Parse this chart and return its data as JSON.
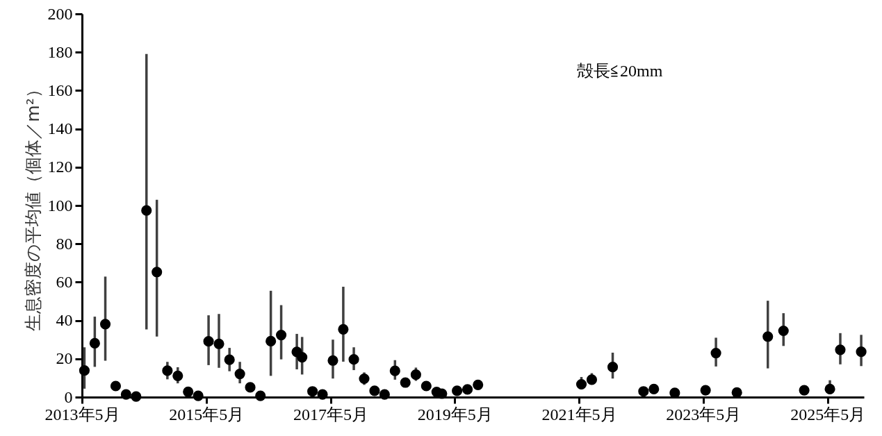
{
  "chart_data": {
    "type": "scatter",
    "ylabel": "生息密度の平均値（個体／m²）",
    "annotations": [
      "殻長≦20mm"
    ],
    "color": "#000000",
    "marker": "circle",
    "x": [
      "2013-05-15",
      "2013-07-15",
      "2013-09-15",
      "2013-11-15",
      "2014-01-15",
      "2014-03-15",
      "2014-05-15",
      "2014-07-15",
      "2014-09-15",
      "2014-11-15",
      "2015-01-15",
      "2015-03-15",
      "2015-05-15",
      "2015-07-15",
      "2015-09-15",
      "2015-11-15",
      "2016-01-15",
      "2016-03-15",
      "2016-05-15",
      "2016-07-15",
      "2016-10-15",
      "2016-11-15",
      "2017-01-15",
      "2017-03-15",
      "2017-05-15",
      "2017-07-15",
      "2017-09-15",
      "2017-11-15",
      "2018-01-15",
      "2018-03-15",
      "2018-05-15",
      "2018-07-15",
      "2018-09-15",
      "2018-11-15",
      "2019-01-15",
      "2019-02-15",
      "2019-05-15",
      "2019-07-15",
      "2019-09-15",
      "2021-05-15",
      "2021-07-15",
      "2021-11-15",
      "2022-05-15",
      "2022-07-15",
      "2022-11-15",
      "2023-05-15",
      "2023-07-15",
      "2023-11-15",
      "2024-05-15",
      "2024-08-15",
      "2024-12-15",
      "2025-05-15",
      "2025-07-15",
      "2025-11-15"
    ],
    "values": [
      13.9,
      28.1,
      38.1,
      5.8,
      1.4,
      0.3,
      97.4,
      65.3,
      13.8,
      11.1,
      2.8,
      0.7,
      29.1,
      27.8,
      19.5,
      12.1,
      5.1,
      0.7,
      29.2,
      32.4,
      23.6,
      20.8,
      3.0,
      1.4,
      19.1,
      35.4,
      19.7,
      9.6,
      3.3,
      1.4,
      13.7,
      7.6,
      11.7,
      5.8,
      2.7,
      1.8,
      3.3,
      4.0,
      6.4,
      6.7,
      9.1,
      15.7,
      3.0,
      4.2,
      2.2,
      3.6,
      23.0,
      2.4,
      31.6,
      34.6,
      3.6,
      4.2,
      24.7,
      23.7
    ],
    "errors": [
      [
        4.4,
        26.0
      ],
      [
        15.8,
        42.0
      ],
      [
        19.0,
        62.9
      ],
      null,
      null,
      null,
      [
        35.3,
        179.1
      ],
      [
        31.6,
        103.0
      ],
      [
        9.3,
        18.4
      ],
      [
        7.2,
        15.6
      ],
      null,
      null,
      [
        16.7,
        42.7
      ],
      [
        15.3,
        43.4
      ],
      [
        13.5,
        25.7
      ],
      [
        7.2,
        18.4
      ],
      null,
      null,
      [
        11.1,
        55.5
      ],
      [
        19.7,
        48.0
      ],
      [
        14.5,
        33.0
      ],
      [
        11.8,
        31.4
      ],
      null,
      null,
      [
        9.7,
        30.0
      ],
      [
        18.5,
        57.6
      ],
      [
        14.1,
        26.0
      ],
      [
        6.4,
        12.9
      ],
      null,
      null,
      [
        9.1,
        19.3
      ],
      null,
      [
        8.5,
        15.4
      ],
      null,
      null,
      null,
      null,
      null,
      null,
      [
        4.0,
        10.5
      ],
      [
        6.5,
        12.5
      ],
      [
        9.7,
        23.2
      ],
      null,
      null,
      null,
      null,
      [
        16.0,
        31.0
      ],
      null,
      [
        15.0,
        50.3
      ],
      [
        26.7,
        43.8
      ],
      null,
      [
        1.5,
        8.8
      ],
      [
        17.1,
        33.4
      ],
      [
        16.2,
        32.5
      ]
    ],
    "xlim": [
      "2013-05",
      "2025-12"
    ],
    "xticks": [
      {
        "value": "2013-05",
        "label": "2013年5月"
      },
      {
        "value": "2015-05",
        "label": "2015年5月"
      },
      {
        "value": "2017-05",
        "label": "2017年5月"
      },
      {
        "value": "2019-05",
        "label": "2019年5月"
      },
      {
        "value": "2021-05",
        "label": "2021年5月"
      },
      {
        "value": "2023-05",
        "label": "2023年5月"
      },
      {
        "value": "2025-05",
        "label": "2025年5月"
      }
    ],
    "ylim": [
      0,
      200
    ],
    "yticks": [
      0,
      20,
      40,
      60,
      80,
      100,
      120,
      140,
      160,
      180,
      200
    ]
  }
}
